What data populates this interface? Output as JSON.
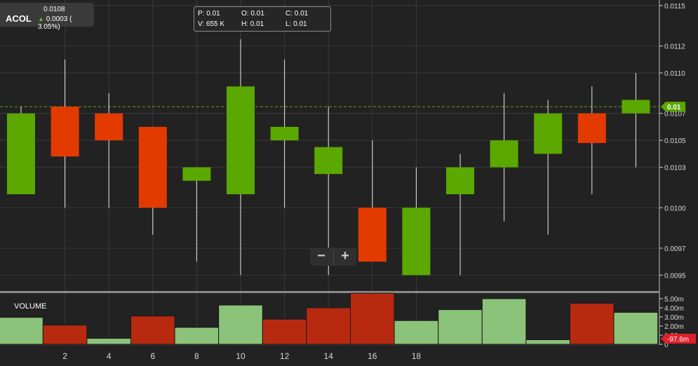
{
  "ticker": {
    "symbol": "ACOL",
    "price": "0.0108",
    "change": "0.0003 ( 3.05%)"
  },
  "ohlc": {
    "p": "P: 0.01",
    "o": "O: 0.01",
    "c": "C: 0.01",
    "v": "V: 655 K",
    "h": "H: 0.01",
    "l": "L: 0.01"
  },
  "zoom": {
    "minus": "−",
    "plus": "+"
  },
  "volume_label": "VOLUME",
  "price_badge": "0.01",
  "volume_badge": "-97.6m",
  "colors": {
    "up": "#5ba800",
    "down": "#e33a00",
    "vol_up": "#8cc37a",
    "vol_down": "#b72a10",
    "background": "#222222"
  },
  "chart_data": [
    {
      "type": "candlestick",
      "x_ticks": [
        2,
        4,
        6,
        8,
        10,
        12,
        14,
        16,
        18
      ],
      "y_tick_labels": [
        "0.0115",
        "0.0112",
        "0.0110",
        "0.0107",
        "0.0105",
        "0.0103",
        "0.0100",
        "0.0097",
        "0.0095"
      ],
      "ylim": [
        0.00945,
        0.01151
      ],
      "last_price": 0.01075,
      "candles": [
        {
          "x": 1,
          "open": 0.0101,
          "high": 0.01075,
          "low": 0.0101,
          "close": 0.0107
        },
        {
          "x": 2,
          "open": 0.01075,
          "high": 0.0111,
          "low": 0.01,
          "close": 0.01038
        },
        {
          "x": 3,
          "open": 0.0107,
          "high": 0.01085,
          "low": 0.01,
          "close": 0.0105
        },
        {
          "x": 4,
          "open": 0.0106,
          "high": 0.0106,
          "low": 0.0098,
          "close": 0.01
        },
        {
          "x": 5,
          "open": 0.0102,
          "high": 0.0103,
          "low": 0.0096,
          "close": 0.0103
        },
        {
          "x": 6,
          "open": 0.0101,
          "high": 0.01125,
          "low": 0.0095,
          "close": 0.0109
        },
        {
          "x": 7,
          "open": 0.0105,
          "high": 0.0111,
          "low": 0.01,
          "close": 0.0106
        },
        {
          "x": 8,
          "open": 0.01025,
          "high": 0.01075,
          "low": 0.0095,
          "close": 0.01045
        },
        {
          "x": 9,
          "open": 0.01,
          "high": 0.0105,
          "low": 0.0096,
          "close": 0.0096
        },
        {
          "x": 10,
          "open": 0.0095,
          "high": 0.0103,
          "low": 0.0095,
          "close": 0.01
        },
        {
          "x": 11,
          "open": 0.0101,
          "high": 0.0104,
          "low": 0.0095,
          "close": 0.0103
        },
        {
          "x": 12,
          "open": 0.0103,
          "high": 0.01085,
          "low": 0.0099,
          "close": 0.0105
        },
        {
          "x": 13,
          "open": 0.0104,
          "high": 0.0108,
          "low": 0.0098,
          "close": 0.0107
        },
        {
          "x": 14,
          "open": 0.0107,
          "high": 0.0109,
          "low": 0.0101,
          "close": 0.01048
        },
        {
          "x": 15,
          "open": 0.0107,
          "high": 0.011,
          "low": 0.0103,
          "close": 0.0108
        }
      ]
    },
    {
      "type": "bar",
      "title": "VOLUME",
      "y_tick_labels": [
        "5.00m",
        "4.00m",
        "3.00m",
        "2.00m",
        "1.00m",
        "0"
      ],
      "ylim": [
        0,
        5.5
      ],
      "values": [
        2.95,
        2.1,
        0.65,
        3.1,
        1.85,
        4.3,
        2.75,
        4.0,
        5.6,
        2.6,
        3.8,
        5.0,
        0.5,
        4.5,
        3.5
      ],
      "direction": [
        "up",
        "down",
        "up",
        "down",
        "up",
        "up",
        "down",
        "down",
        "down",
        "up",
        "up",
        "up",
        "up",
        "down",
        "up"
      ]
    }
  ]
}
